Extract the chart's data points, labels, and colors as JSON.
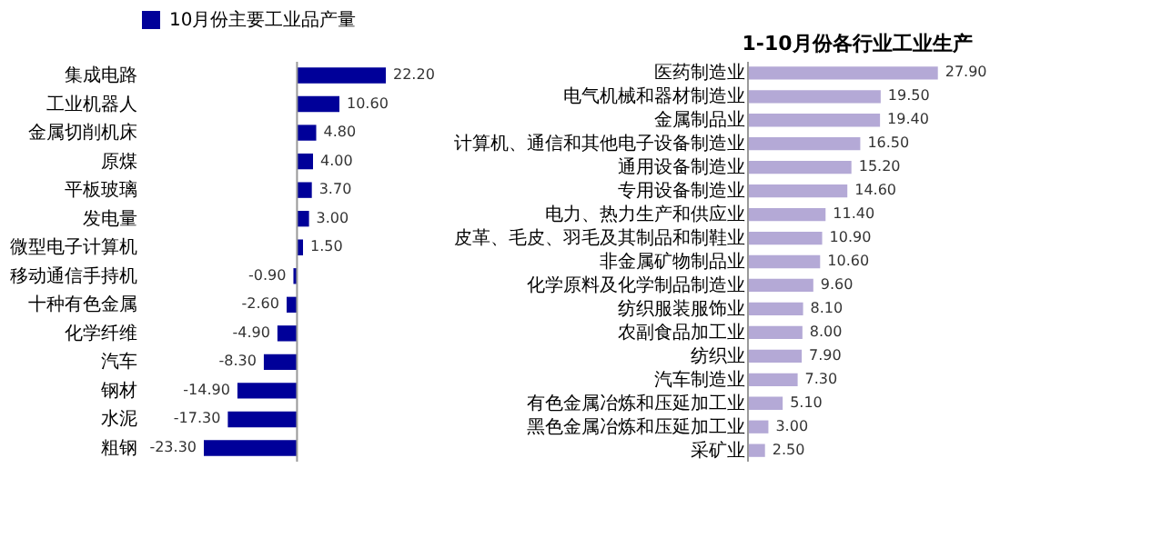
{
  "chart_data": [
    {
      "type": "bar",
      "orientation": "horizontal",
      "categories": [
        "集成电路",
        "工业机器人",
        "金属切削机床",
        "原煤",
        "平板玻璃",
        "发电量",
        "微型电子计算机",
        "移动通信手持机",
        "十种有色金属",
        "化学纤维",
        "汽车",
        "钢材",
        "水泥",
        "粗钢"
      ],
      "series": [
        {
          "name": "10月份主要工业品产量",
          "color": "#000099",
          "values": [
            22.2,
            10.6,
            4.8,
            4.0,
            3.7,
            3.0,
            1.5,
            -0.9,
            -2.6,
            -4.9,
            -8.3,
            -14.9,
            -17.3,
            -23.3
          ],
          "value_labels": [
            "22.20",
            "10.60",
            "4.80",
            "4.00",
            "3.70",
            "3.00",
            "1.50",
            "-0.90",
            "-2.60",
            "-4.90",
            "-8.30",
            "-14.90",
            "-17.30",
            "-23.30"
          ]
        }
      ],
      "legend": "top",
      "tick_labels": false
    },
    {
      "type": "bar",
      "orientation": "horizontal",
      "title": "1-10月份各行业工业生产",
      "categories": [
        "医药制造业",
        "电气机械和器材制造业",
        "金属制品业",
        "计算机、通信和其他电子设备制造业",
        "通用设备制造业",
        "专用设备制造业",
        "电力、热力生产和供应业",
        "皮革、毛皮、羽毛及其制品和制鞋业",
        "非金属矿物制品业",
        "化学原料及化学制品制造业",
        "纺织服装服饰业",
        "农副食品加工业",
        "纺织业",
        "汽车制造业",
        "有色金属冶炼和压延加工业",
        "黑色金属冶炼和压延加工业",
        "采矿业"
      ],
      "series": [
        {
          "color": "#b4a9d6",
          "values": [
            27.9,
            19.5,
            19.4,
            16.5,
            15.2,
            14.6,
            11.4,
            10.9,
            10.6,
            9.6,
            8.1,
            8.0,
            7.9,
            7.3,
            5.1,
            3.0,
            2.5
          ],
          "value_labels": [
            "27.90",
            "19.50",
            "19.40",
            "16.50",
            "15.20",
            "14.60",
            "11.40",
            "10.90",
            "10.60",
            "9.60",
            "8.10",
            "8.00",
            "7.90",
            "7.30",
            "5.10",
            "3.00",
            "2.50"
          ]
        }
      ],
      "tick_labels": false
    }
  ]
}
